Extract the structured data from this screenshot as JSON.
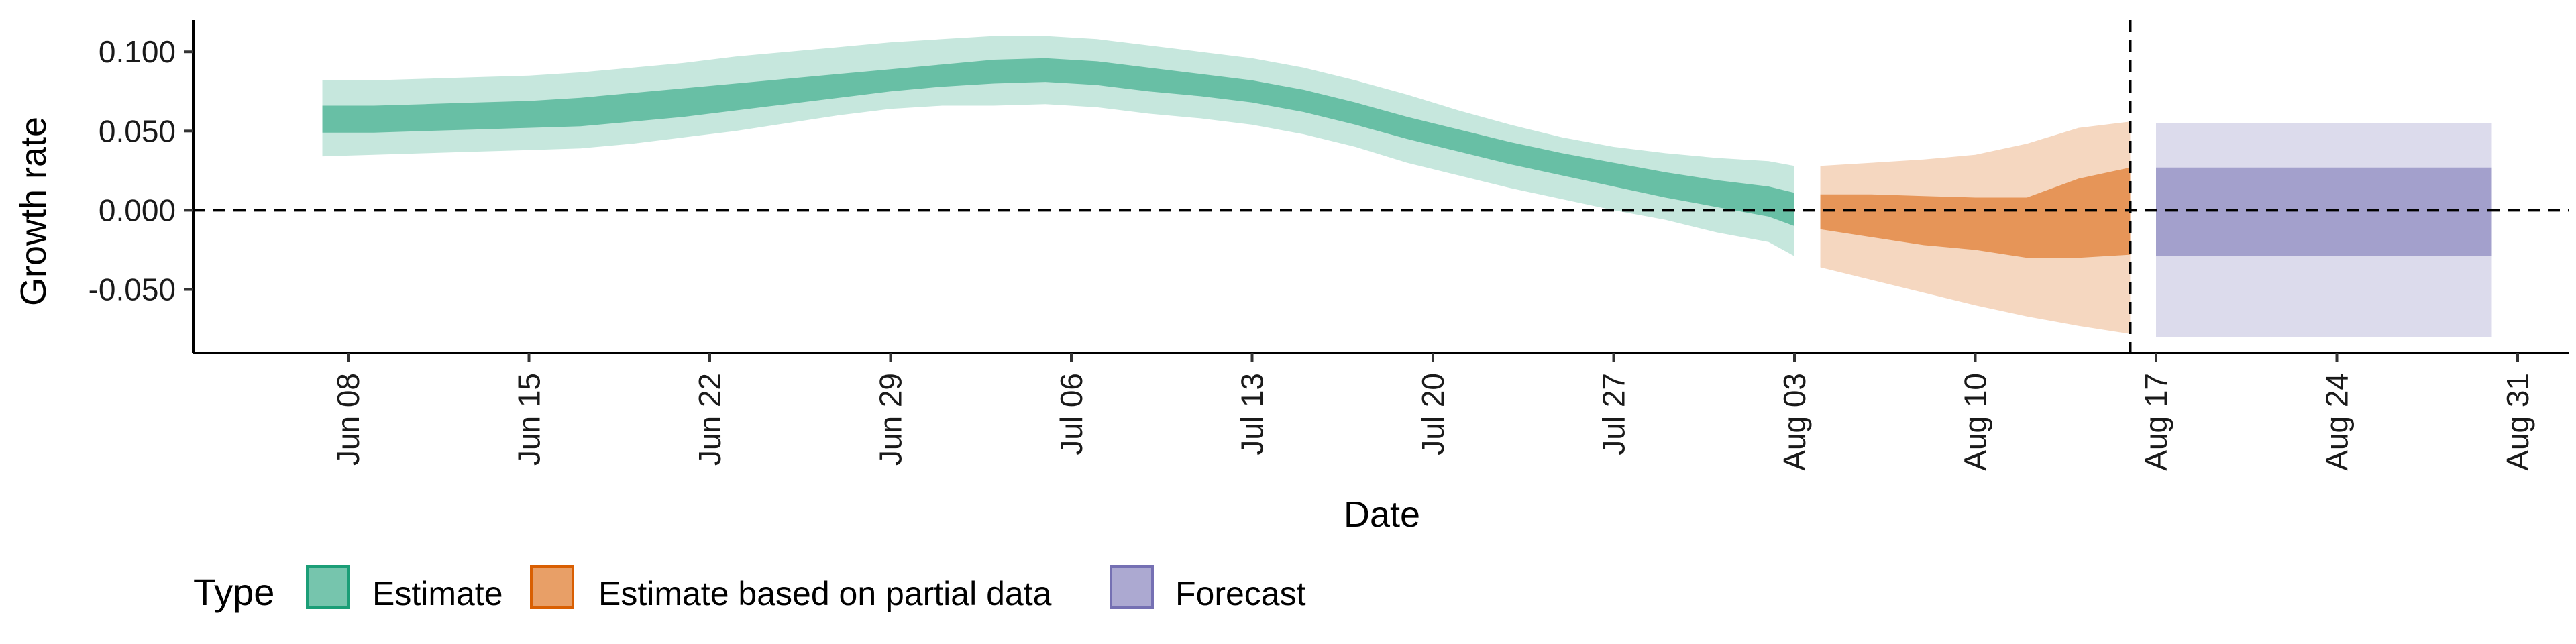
{
  "chart_data": {
    "type": "area",
    "title": "",
    "xlabel": "Date",
    "ylabel": "Growth rate",
    "x_ticks": [
      "Jun 08",
      "Jun 15",
      "Jun 22",
      "Jun 29",
      "Jul 06",
      "Jul 13",
      "Jul 20",
      "Jul 27",
      "Aug 03",
      "Aug 10",
      "Aug 17",
      "Aug 24",
      "Aug 31"
    ],
    "y_ticks": [
      "0.100",
      "0.050",
      "0.000",
      "-0.050"
    ],
    "xlim": [
      "2020-06-02",
      "2020-09-02"
    ],
    "ylim": [
      -0.09,
      0.12
    ],
    "grid": false,
    "reference_lines": [
      {
        "axis": "y",
        "value": 0,
        "style": "dashed"
      },
      {
        "axis": "x",
        "value": "2020-08-16",
        "style": "dashed"
      }
    ],
    "legend": {
      "title": "Type",
      "position": "bottom-left",
      "entries": [
        "Estimate",
        "Estimate based on partial data",
        "Forecast"
      ]
    },
    "series": [
      {
        "name": "Estimate",
        "color": "#1b9e77",
        "x": [
          "2020-06-07",
          "2020-06-09",
          "2020-06-11",
          "2020-06-13",
          "2020-06-15",
          "2020-06-17",
          "2020-06-19",
          "2020-06-21",
          "2020-06-23",
          "2020-06-25",
          "2020-06-27",
          "2020-06-29",
          "2020-07-01",
          "2020-07-03",
          "2020-07-05",
          "2020-07-07",
          "2020-07-09",
          "2020-07-11",
          "2020-07-13",
          "2020-07-15",
          "2020-07-17",
          "2020-07-19",
          "2020-07-21",
          "2020-07-23",
          "2020-07-25",
          "2020-07-27",
          "2020-07-29",
          "2020-07-31",
          "2020-08-02",
          "2020-08-03"
        ],
        "lower_90": [
          0.034,
          0.035,
          0.036,
          0.037,
          0.038,
          0.039,
          0.042,
          0.046,
          0.05,
          0.055,
          0.06,
          0.064,
          0.066,
          0.066,
          0.067,
          0.065,
          0.061,
          0.058,
          0.054,
          0.048,
          0.04,
          0.03,
          0.022,
          0.014,
          0.007,
          0.0,
          -0.006,
          -0.014,
          -0.02,
          -0.029
        ],
        "upper_90": [
          0.082,
          0.082,
          0.083,
          0.084,
          0.085,
          0.087,
          0.09,
          0.093,
          0.097,
          0.1,
          0.103,
          0.106,
          0.108,
          0.11,
          0.11,
          0.108,
          0.104,
          0.1,
          0.096,
          0.09,
          0.082,
          0.073,
          0.063,
          0.054,
          0.046,
          0.04,
          0.036,
          0.033,
          0.031,
          0.028
        ],
        "lower_50": [
          0.049,
          0.049,
          0.05,
          0.051,
          0.052,
          0.053,
          0.056,
          0.059,
          0.063,
          0.067,
          0.071,
          0.075,
          0.078,
          0.08,
          0.081,
          0.079,
          0.075,
          0.072,
          0.068,
          0.062,
          0.054,
          0.045,
          0.037,
          0.029,
          0.022,
          0.015,
          0.008,
          0.002,
          -0.004,
          -0.01
        ],
        "upper_50": [
          0.066,
          0.066,
          0.067,
          0.068,
          0.069,
          0.071,
          0.074,
          0.077,
          0.08,
          0.083,
          0.086,
          0.089,
          0.092,
          0.095,
          0.096,
          0.094,
          0.09,
          0.086,
          0.082,
          0.076,
          0.068,
          0.059,
          0.051,
          0.043,
          0.036,
          0.03,
          0.024,
          0.019,
          0.015,
          0.011
        ]
      },
      {
        "name": "Estimate based on partial data",
        "color": "#d95f02",
        "x": [
          "2020-08-04",
          "2020-08-06",
          "2020-08-08",
          "2020-08-10",
          "2020-08-12",
          "2020-08-14",
          "2020-08-16"
        ],
        "lower_90": [
          -0.036,
          -0.044,
          -0.052,
          -0.06,
          -0.067,
          -0.073,
          -0.078
        ],
        "upper_90": [
          0.028,
          0.03,
          0.032,
          0.035,
          0.042,
          0.052,
          0.056
        ],
        "lower_50": [
          -0.012,
          -0.017,
          -0.022,
          -0.025,
          -0.03,
          -0.03,
          -0.028
        ],
        "upper_50": [
          0.01,
          0.01,
          0.009,
          0.008,
          0.008,
          0.02,
          0.027
        ]
      },
      {
        "name": "Forecast",
        "color": "#7570b3",
        "x": [
          "2020-08-17",
          "2020-08-30"
        ],
        "lower_90": [
          -0.08,
          -0.08
        ],
        "upper_90": [
          0.055,
          0.055
        ],
        "lower_50": [
          -0.029,
          -0.029
        ],
        "upper_50": [
          0.027,
          0.027
        ]
      }
    ]
  }
}
